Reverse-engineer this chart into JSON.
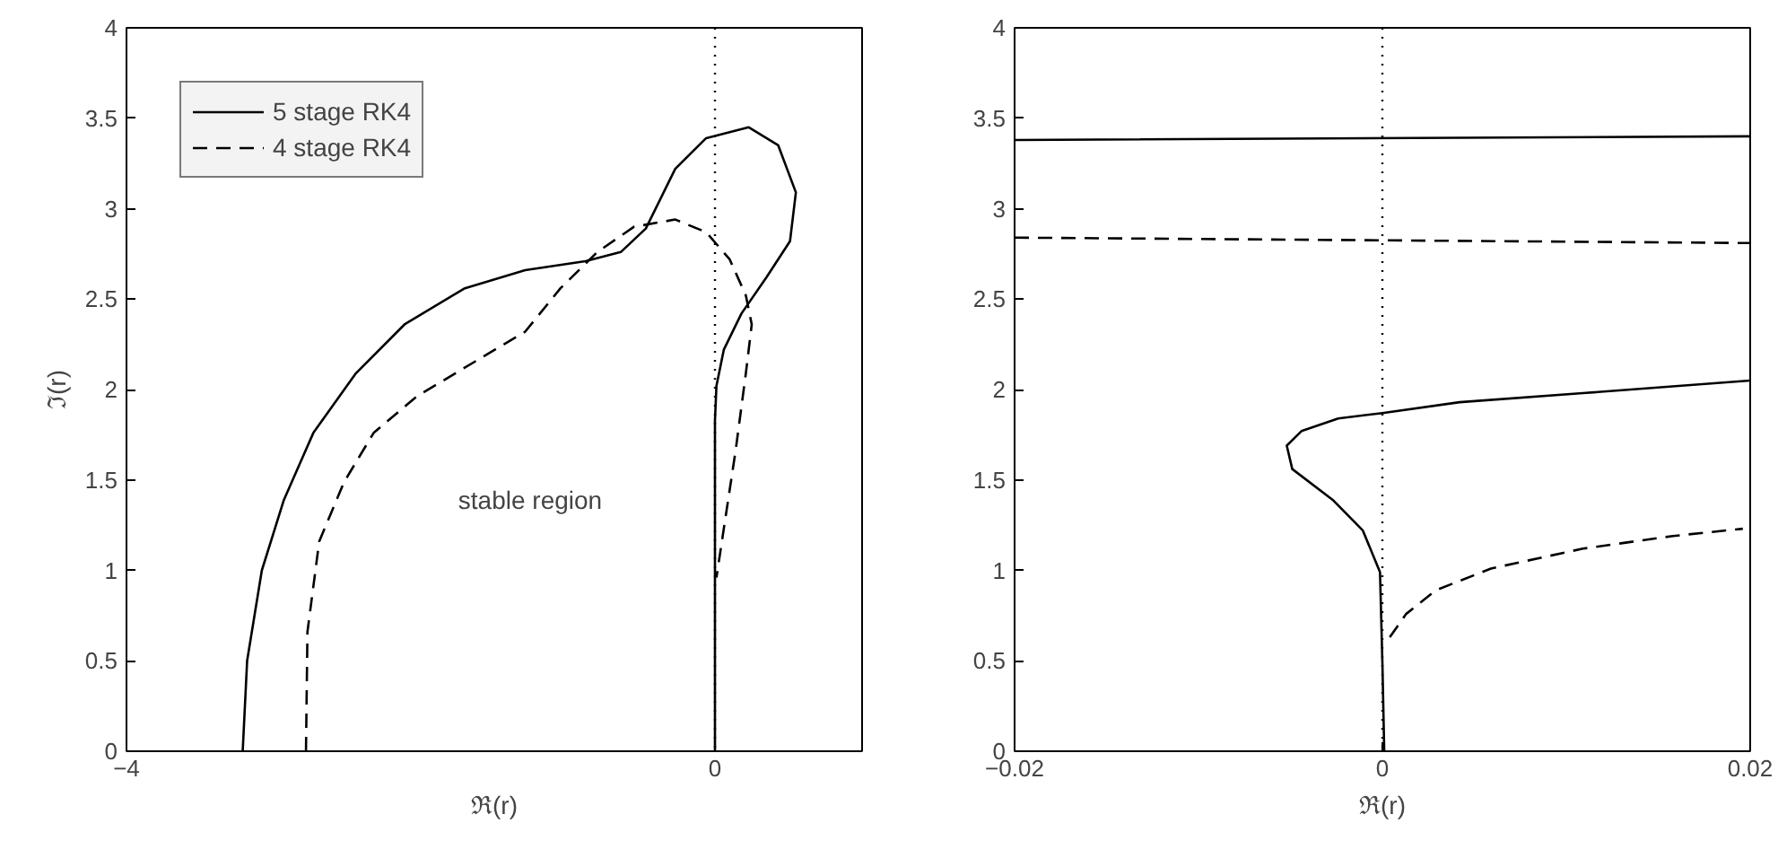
{
  "chart_data": [
    {
      "type": "line",
      "xlabel": "ℜ(r)",
      "ylabel": "ℑ(r)",
      "xlim": [
        -4,
        1
      ],
      "ylim": [
        0,
        4
      ],
      "xticks": [
        -4,
        0
      ],
      "yticks": [
        0,
        0.5,
        1,
        1.5,
        2,
        2.5,
        3,
        3.5,
        4
      ],
      "grid": false,
      "legend": "top left",
      "marker": "none",
      "annotations": [
        "stable region"
      ],
      "ref_lines": [
        {
          "axis": "x",
          "value": 0,
          "label": null,
          "color": "#000000",
          "line_style": "dotted"
        }
      ],
      "series": [
        {
          "name": "5 stage RK4",
          "color": "#000000",
          "line_style": "solid",
          "x": [
            -3.21,
            -3.18,
            -3.08,
            -2.93,
            -2.73,
            -2.44,
            -2.11,
            -1.7,
            -1.29,
            -0.88,
            -0.64,
            -0.47,
            -0.27,
            -0.06,
            0.23,
            0.43,
            0.55,
            0.51,
            0.35,
            0.18,
            0.06,
            0.01,
            0,
            0
          ],
          "values": [
            0,
            0.5,
            1.0,
            1.39,
            1.76,
            2.09,
            2.36,
            2.56,
            2.66,
            2.71,
            2.76,
            2.89,
            3.22,
            3.39,
            3.45,
            3.35,
            3.09,
            2.82,
            2.62,
            2.42,
            2.22,
            2.02,
            1.83,
            0
          ]
        },
        {
          "name": "4 stage RK4",
          "color": "#000000",
          "line_style": "dashed",
          "x": [
            -2.78,
            -2.77,
            -2.69,
            -2.52,
            -2.32,
            -2.03,
            -1.62,
            -1.29,
            -1.05,
            -0.8,
            -0.55,
            -0.27,
            -0.06,
            0.1,
            0.21,
            0.25,
            0.21,
            0.14,
            0.06,
            0.01
          ],
          "values": [
            0,
            0.66,
            1.16,
            1.49,
            1.76,
            1.96,
            2.16,
            2.32,
            2.56,
            2.76,
            2.9,
            2.94,
            2.87,
            2.72,
            2.52,
            2.36,
            2.09,
            1.66,
            1.23,
            0.96
          ]
        }
      ]
    },
    {
      "type": "line",
      "xlabel": "ℜ(r)",
      "xlim": [
        -0.02,
        0.02
      ],
      "ylim": [
        0,
        4
      ],
      "xticks": [
        -0.02,
        0,
        0.02
      ],
      "yticks": [
        0,
        0.5,
        1,
        1.5,
        2,
        2.5,
        3,
        3.5,
        4
      ],
      "grid": false,
      "legend": false,
      "marker": "none",
      "ref_lines": [
        {
          "axis": "x",
          "value": 0,
          "label": null,
          "color": "#000000",
          "line_style": "dotted"
        }
      ],
      "series": [
        {
          "color": "#000000",
          "line_style": "solid",
          "x": [
            -0.02,
            0.02,
            null,
            0.0001,
            0,
            -0.00013,
            -0.00106,
            -0.0027,
            -0.0049,
            -0.0052,
            -0.0044,
            -0.0024,
            0,
            0.0042,
            0.0109,
            0.02
          ],
          "values": [
            3.38,
            3.4,
            null,
            0,
            0.49,
            0.99,
            1.22,
            1.39,
            1.56,
            1.69,
            1.77,
            1.84,
            1.87,
            1.93,
            1.98,
            2.05
          ]
        },
        {
          "color": "#000000",
          "line_style": "dashed",
          "x": [
            -0.02,
            0.02,
            null,
            0.0004,
            0.0013,
            0.0029,
            0.0059,
            0.0109,
            0.0158,
            0.0196
          ],
          "values": [
            2.84,
            2.81,
            null,
            0.63,
            0.76,
            0.89,
            1.01,
            1.12,
            1.19,
            1.23
          ]
        }
      ]
    }
  ]
}
